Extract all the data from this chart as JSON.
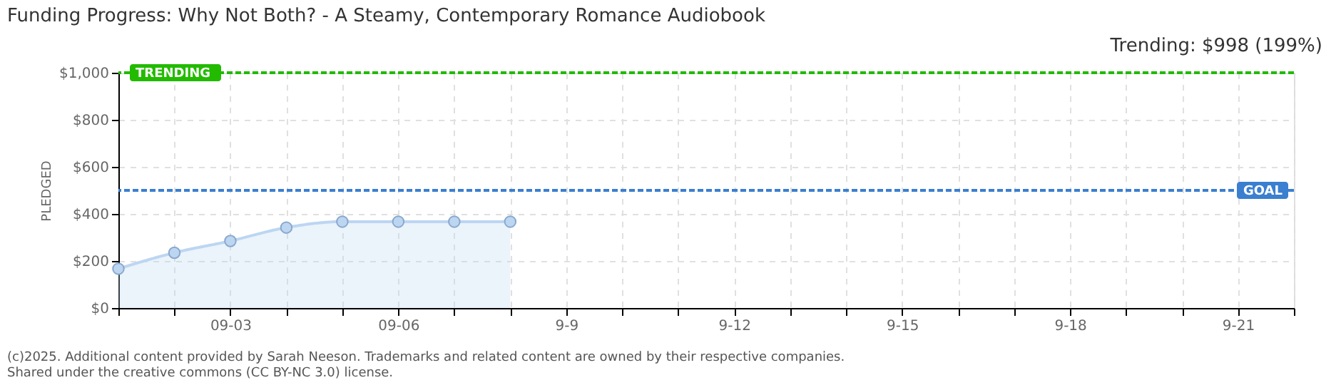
{
  "chart_data": {
    "type": "area",
    "title": "Funding Progress: Why Not Both? - A Steamy, Contemporary Romance Audiobook",
    "subtitle": "Trending: $998 (199%)",
    "ylabel": "PLEDGED",
    "x": [
      "--09-01",
      "--09-02",
      "--09-03",
      "--09-04",
      "--09-05",
      "--09-06",
      "--09-07",
      "--09-08"
    ],
    "series": [
      {
        "color": "#bcd6f2",
        "values": [
          167,
          235,
          285,
          342,
          367,
          367,
          367,
          367
        ]
      }
    ],
    "marker": "circle",
    "line_style": "solid",
    "xlim": [
      "--09-01",
      "--09-22"
    ],
    "xticks": [
      {
        "value": "--09-01",
        "label": null
      },
      {
        "value": "--09-02",
        "label": null
      },
      {
        "value": "--09-03",
        "label": "09-03"
      },
      {
        "value": "--09-04",
        "label": null
      },
      {
        "value": "--09-05",
        "label": null
      },
      {
        "value": "--09-06",
        "label": "09-06"
      },
      {
        "value": "--09-07",
        "label": null
      },
      {
        "value": "--09-08",
        "label": null
      },
      {
        "value": "--09-09",
        "label": "9-9"
      },
      {
        "value": "--09-10",
        "label": null
      },
      {
        "value": "--09-11",
        "label": null
      },
      {
        "value": "--09-12",
        "label": "9-12"
      },
      {
        "value": "--09-13",
        "label": null
      },
      {
        "value": "--09-14",
        "label": null
      },
      {
        "value": "--09-15",
        "label": "9-15"
      },
      {
        "value": "--09-16",
        "label": null
      },
      {
        "value": "--09-17",
        "label": null
      },
      {
        "value": "--09-18",
        "label": "9-18"
      },
      {
        "value": "--09-19",
        "label": null
      },
      {
        "value": "--09-20",
        "label": null
      },
      {
        "value": "--09-21",
        "label": "9-21"
      },
      {
        "value": "--09-22",
        "label": null
      }
    ],
    "ylim": [
      0,
      1000
    ],
    "yticks": [
      {
        "value": 0,
        "label": "$0"
      },
      {
        "value": 200,
        "label": "$200"
      },
      {
        "value": 400,
        "label": "$400"
      },
      {
        "value": 600,
        "label": "$600"
      },
      {
        "value": 800,
        "label": "$800"
      },
      {
        "value": 1000,
        "label": "$1,000"
      }
    ],
    "grid": true,
    "ref_lines": [
      {
        "axis": "y",
        "value": 1000,
        "label": "TRENDING",
        "color": "#22bb00",
        "line_style": "dashed"
      },
      {
        "axis": "y",
        "value": 500,
        "label": "GOAL",
        "color": "#3a7fd0",
        "line_style": "dashed"
      }
    ],
    "annotations": [
      "(c)2025. Additional content provided by Sarah Neeson. Trademarks and related content are owned by their respective companies.",
      "Shared under the creative commons (CC BY-NC 3.0) license."
    ]
  }
}
